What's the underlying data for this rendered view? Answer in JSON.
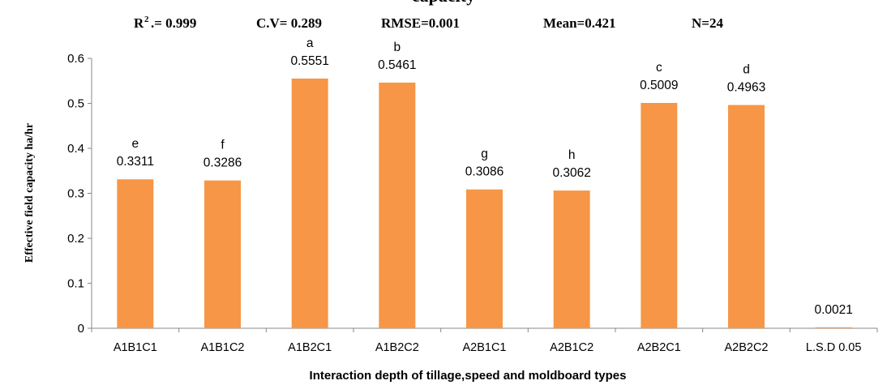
{
  "chart_data": {
    "type": "bar",
    "title": "capacity",
    "stats": {
      "r2_label": "R",
      "r2_sup": "2",
      "r2_value": ".= 0.999",
      "cv": "C.V= 0.289",
      "rmse": "RMSE=0.001",
      "mean": "Mean=0.421",
      "n": "N=24"
    },
    "xlabel": "Interaction depth of tillage,speed and moldboard types",
    "ylabel": "Effective field capacity  ha/hr",
    "ylim": [
      0,
      0.6
    ],
    "yticks": [
      "0",
      "0.1",
      "0.2",
      "0.3",
      "0.4",
      "0.5",
      "0.6"
    ],
    "categories": [
      "A1B1C1",
      "A1B1C2",
      "A1B2C1",
      "A1B2C2",
      "A2B1C1",
      "A2B1C2",
      "A2B2C1",
      "A2B2C2",
      "L.S.D 0.05"
    ],
    "values": [
      0.3311,
      0.3286,
      0.5551,
      0.5461,
      0.3086,
      0.3062,
      0.5009,
      0.4963,
      0.0021
    ],
    "value_labels": [
      "0.3311",
      "0.3286",
      "0.5551",
      "0.5461",
      "0.3086",
      "0.3062",
      "0.5009",
      "0.4963",
      "0.0021"
    ],
    "letters": [
      "e",
      "f",
      "a",
      "b",
      "g",
      "h",
      "c",
      "d",
      ""
    ],
    "bar_color": "#F79646",
    "axis_color": "#888888",
    "grid": false
  }
}
